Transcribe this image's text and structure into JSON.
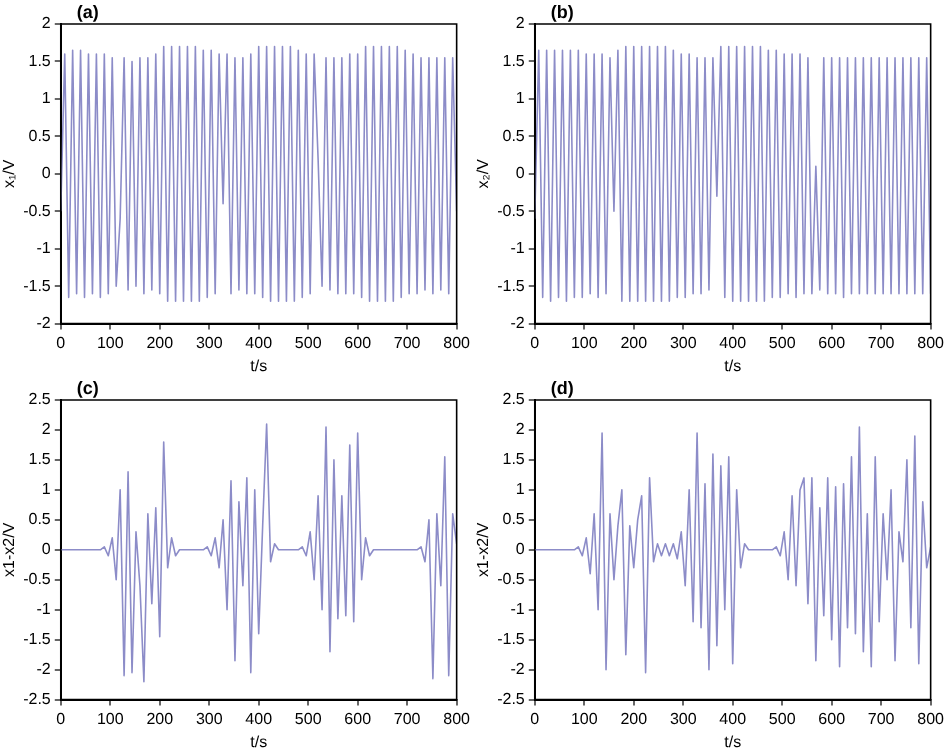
{
  "chart_data": [
    {
      "type": "line",
      "xlabel": "t/s",
      "ylabel": "x₁/V",
      "annotations": [
        "(a)"
      ],
      "xlim": [
        0,
        800
      ],
      "xticks": [
        0,
        100,
        200,
        300,
        400,
        500,
        600,
        700,
        800
      ],
      "ylim": [
        -2,
        2
      ],
      "yticks": [
        -2,
        -1.5,
        -1,
        -0.5,
        0,
        0.5,
        1,
        1.5,
        2
      ],
      "x": [
        0,
        8,
        16,
        24,
        32,
        40,
        48,
        56,
        64,
        72,
        80,
        88,
        96,
        104,
        112,
        120,
        128,
        136,
        144,
        152,
        160,
        168,
        176,
        184,
        192,
        200,
        208,
        216,
        224,
        232,
        240,
        248,
        256,
        264,
        272,
        280,
        288,
        296,
        304,
        312,
        320,
        328,
        336,
        344,
        352,
        360,
        368,
        376,
        384,
        392,
        400,
        408,
        416,
        424,
        432,
        440,
        448,
        456,
        464,
        472,
        480,
        488,
        496,
        504,
        512,
        520,
        528,
        536,
        544,
        552,
        560,
        568,
        576,
        584,
        592,
        600,
        608,
        616,
        624,
        632,
        640,
        648,
        656,
        664,
        672,
        680,
        688,
        696,
        704,
        712,
        720,
        728,
        736,
        744,
        752,
        760,
        768,
        776,
        784,
        792,
        800
      ],
      "series": [
        {
          "color": "#8c8cc8",
          "values": [
            -0.5,
            1.6,
            -1.65,
            1.65,
            -1.6,
            1.65,
            -1.65,
            1.6,
            -1.6,
            1.6,
            -1.65,
            1.6,
            -1.6,
            1.55,
            -1.5,
            -0.6,
            1.55,
            -1.55,
            1.5,
            -1.5,
            1.55,
            -1.6,
            1.55,
            -1.55,
            1.6,
            -1.6,
            1.7,
            -1.7,
            1.7,
            -1.7,
            1.7,
            -1.7,
            1.7,
            -1.7,
            1.7,
            -1.7,
            1.65,
            -1.65,
            1.65,
            -1.6,
            1.6,
            -0.4,
            1.6,
            -1.6,
            1.55,
            -1.55,
            1.55,
            -1.6,
            1.6,
            -1.6,
            1.7,
            -1.65,
            1.7,
            -1.7,
            1.7,
            -1.7,
            1.7,
            -1.7,
            1.7,
            -1.7,
            1.65,
            -1.65,
            1.6,
            -1.6,
            1.6,
            0.2,
            -1.5,
            1.55,
            -1.55,
            1.55,
            -1.6,
            1.55,
            -1.6,
            1.6,
            -1.6,
            1.6,
            -1.65,
            1.7,
            -1.7,
            1.7,
            -1.7,
            1.7,
            -1.7,
            1.7,
            -1.7,
            1.7,
            -1.65,
            1.65,
            -1.6,
            1.6,
            -1.6,
            1.55,
            -1.55,
            1.55,
            -1.6,
            1.55,
            -1.55,
            1.55,
            -1.6,
            1.55,
            -0.5
          ]
        }
      ]
    },
    {
      "type": "line",
      "xlabel": "t/s",
      "ylabel": "x₂/V",
      "annotations": [
        "(b)"
      ],
      "xlim": [
        0,
        800
      ],
      "xticks": [
        0,
        100,
        200,
        300,
        400,
        500,
        600,
        700,
        800
      ],
      "ylim": [
        -2,
        2
      ],
      "yticks": [
        -2,
        -1.5,
        -1,
        -0.5,
        0,
        0.5,
        1,
        1.5,
        2
      ],
      "x": [
        0,
        8,
        16,
        24,
        32,
        40,
        48,
        56,
        64,
        72,
        80,
        88,
        96,
        104,
        112,
        120,
        128,
        136,
        144,
        152,
        160,
        168,
        176,
        184,
        192,
        200,
        208,
        216,
        224,
        232,
        240,
        248,
        256,
        264,
        272,
        280,
        288,
        296,
        304,
        312,
        320,
        328,
        336,
        344,
        352,
        360,
        368,
        376,
        384,
        392,
        400,
        408,
        416,
        424,
        432,
        440,
        448,
        456,
        464,
        472,
        480,
        488,
        496,
        504,
        512,
        520,
        528,
        536,
        544,
        552,
        560,
        568,
        576,
        584,
        592,
        600,
        608,
        616,
        624,
        632,
        640,
        648,
        656,
        664,
        672,
        680,
        688,
        696,
        704,
        712,
        720,
        728,
        736,
        744,
        752,
        760,
        768,
        776,
        784,
        792,
        800
      ],
      "series": [
        {
          "color": "#8c8cc8",
          "values": [
            -0.6,
            1.65,
            -1.65,
            1.65,
            -1.7,
            1.65,
            -1.65,
            1.65,
            -1.7,
            1.65,
            -1.65,
            1.65,
            -1.65,
            1.6,
            -1.6,
            1.6,
            -1.65,
            1.6,
            -1.6,
            1.55,
            -0.5,
            1.65,
            -1.7,
            1.7,
            -1.7,
            1.7,
            -1.7,
            1.7,
            -1.7,
            1.7,
            -1.7,
            1.7,
            -1.7,
            1.7,
            -1.7,
            1.65,
            -1.65,
            1.6,
            -1.65,
            1.6,
            -1.6,
            1.55,
            -1.6,
            1.55,
            -1.55,
            1.55,
            -0.3,
            1.7,
            -1.65,
            1.7,
            -1.7,
            1.7,
            -1.7,
            1.7,
            -1.7,
            1.7,
            -1.7,
            1.7,
            -1.7,
            1.65,
            -1.65,
            1.65,
            -1.65,
            1.6,
            -1.6,
            1.6,
            -1.65,
            1.6,
            -1.6,
            1.55,
            -1.6,
            0.1,
            -1.55,
            1.55,
            -1.6,
            1.55,
            -1.6,
            1.55,
            -1.65,
            1.55,
            -1.6,
            1.55,
            -1.6,
            1.55,
            -1.6,
            1.55,
            -1.6,
            1.55,
            -1.6,
            1.55,
            -1.6,
            1.55,
            -1.6,
            1.55,
            -1.6,
            1.55,
            -1.6,
            1.55,
            -1.6,
            1.55,
            -1.6
          ]
        }
      ]
    },
    {
      "type": "line",
      "xlabel": "t/s",
      "ylabel": "x1-x2/V",
      "annotations": [
        "(c)"
      ],
      "xlim": [
        0,
        800
      ],
      "xticks": [
        0,
        100,
        200,
        300,
        400,
        500,
        600,
        700,
        800
      ],
      "ylim": [
        -2.5,
        2.5
      ],
      "yticks": [
        -2.5,
        -2,
        -1.5,
        -1,
        -0.5,
        0,
        0.5,
        1,
        1.5,
        2,
        2.5
      ],
      "x": [
        0,
        8,
        16,
        24,
        32,
        40,
        48,
        56,
        64,
        72,
        80,
        88,
        96,
        104,
        112,
        120,
        128,
        136,
        144,
        152,
        160,
        168,
        176,
        184,
        192,
        200,
        208,
        216,
        224,
        232,
        240,
        248,
        256,
        264,
        272,
        280,
        288,
        296,
        304,
        312,
        320,
        328,
        336,
        344,
        352,
        360,
        368,
        376,
        384,
        392,
        400,
        408,
        416,
        424,
        432,
        440,
        448,
        456,
        464,
        472,
        480,
        488,
        496,
        504,
        512,
        520,
        528,
        536,
        544,
        552,
        560,
        568,
        576,
        584,
        592,
        600,
        608,
        616,
        624,
        632,
        640,
        648,
        656,
        664,
        672,
        680,
        688,
        696,
        704,
        712,
        720,
        728,
        736,
        744,
        752,
        760,
        768,
        776,
        784,
        792,
        800
      ],
      "series": [
        {
          "color": "#8c8cc8",
          "values": [
            0,
            0,
            0,
            0,
            0,
            0,
            0,
            0,
            0,
            0,
            0,
            0.05,
            -0.1,
            0.2,
            -0.5,
            1.0,
            -2.1,
            1.3,
            -2.05,
            0.3,
            -0.6,
            -2.2,
            0.6,
            -0.9,
            0.7,
            -1.45,
            1.8,
            -0.3,
            0.2,
            -0.1,
            0,
            0,
            0,
            0,
            0,
            0,
            0,
            0.05,
            -0.1,
            0.2,
            -0.3,
            0.5,
            -1.0,
            1.15,
            -1.85,
            0.8,
            -0.6,
            1.2,
            -2.05,
            1.0,
            -1.4,
            0.4,
            2.1,
            -0.2,
            0.1,
            0,
            0,
            0,
            0,
            0,
            0,
            0.05,
            -0.1,
            0.3,
            -0.5,
            0.9,
            -1.0,
            2.05,
            -1.7,
            1.5,
            -1.15,
            0.9,
            -1.1,
            1.75,
            -1.2,
            1.95,
            -0.5,
            0.2,
            -0.1,
            0,
            0,
            0,
            0,
            0,
            0,
            0,
            0,
            0,
            0,
            0,
            0,
            0.05,
            -0.2,
            0.5,
            -2.15,
            0.6,
            -0.6,
            1.55,
            -2.1,
            0.6,
            0.1
          ]
        }
      ]
    },
    {
      "type": "line",
      "xlabel": "t/s",
      "ylabel": "x1-x2/V",
      "annotations": [
        "(d)"
      ],
      "xlim": [
        0,
        800
      ],
      "xticks": [
        0,
        100,
        200,
        300,
        400,
        500,
        600,
        700,
        800
      ],
      "ylim": [
        -2.5,
        2.5
      ],
      "yticks": [
        -2.5,
        -2,
        -1.5,
        -1,
        -0.5,
        0,
        0.5,
        1,
        1.5,
        2,
        2.5
      ],
      "x": [
        0,
        8,
        16,
        24,
        32,
        40,
        48,
        56,
        64,
        72,
        80,
        88,
        96,
        104,
        112,
        120,
        128,
        136,
        144,
        152,
        160,
        168,
        176,
        184,
        192,
        200,
        208,
        216,
        224,
        232,
        240,
        248,
        256,
        264,
        272,
        280,
        288,
        296,
        304,
        312,
        320,
        328,
        336,
        344,
        352,
        360,
        368,
        376,
        384,
        392,
        400,
        408,
        416,
        424,
        432,
        440,
        448,
        456,
        464,
        472,
        480,
        488,
        496,
        504,
        512,
        520,
        528,
        536,
        544,
        552,
        560,
        568,
        576,
        584,
        592,
        600,
        608,
        616,
        624,
        632,
        640,
        648,
        656,
        664,
        672,
        680,
        688,
        696,
        704,
        712,
        720,
        728,
        736,
        744,
        752,
        760,
        768,
        776,
        784,
        792,
        800
      ],
      "series": [
        {
          "color": "#8c8cc8",
          "values": [
            0,
            0,
            0,
            0,
            0,
            0,
            0,
            0,
            0,
            0,
            0,
            0.05,
            -0.1,
            0.2,
            -0.4,
            0.6,
            -1.0,
            1.95,
            -2.0,
            0.6,
            -0.5,
            0.4,
            1.0,
            -1.75,
            0.4,
            -0.3,
            0.5,
            0.9,
            -2.05,
            1.2,
            -0.2,
            0.1,
            -0.1,
            0.1,
            -0.1,
            0.1,
            -0.15,
            0.3,
            -0.6,
            1.0,
            -1.2,
            1.95,
            -1.3,
            1.1,
            -2.0,
            1.6,
            -1.6,
            1.4,
            -1.0,
            1.55,
            -1.9,
            1.0,
            -0.3,
            0.1,
            0,
            0,
            0,
            0,
            0,
            0,
            0,
            0.05,
            -0.1,
            0.3,
            -0.5,
            0.9,
            -0.6,
            1.0,
            1.2,
            -0.9,
            1.2,
            -1.85,
            0.7,
            -1.1,
            1.2,
            -1.5,
            1.05,
            -1.95,
            1.1,
            -1.3,
            1.55,
            -1.4,
            2.05,
            -1.7,
            0.6,
            -1.95,
            1.55,
            -1.2,
            0.6,
            -0.5,
            1.0,
            -1.85,
            0.3,
            -0.2,
            1.5,
            -1.3,
            1.9,
            -1.9,
            0.8,
            -0.3,
            0.05
          ]
        }
      ]
    }
  ]
}
